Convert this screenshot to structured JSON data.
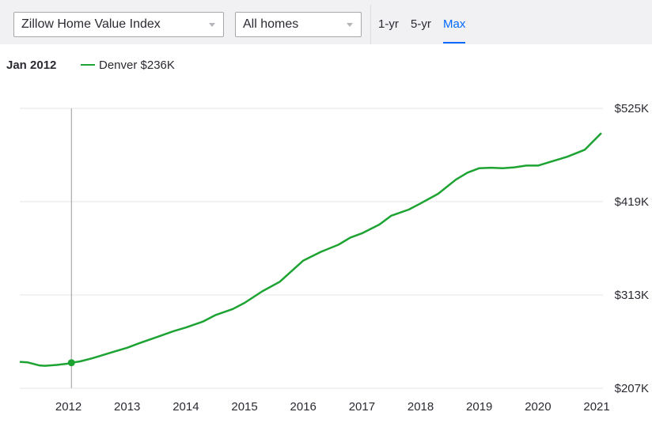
{
  "controls": {
    "metric_select": "Zillow Home Value Index",
    "home_type_select": "All homes",
    "ranges": [
      "1-yr",
      "5-yr",
      "Max"
    ],
    "active_range": "Max"
  },
  "legend": {
    "date": "Jan 2012",
    "series_label": "Denver $236K"
  },
  "colors": {
    "series": "#1da332",
    "accent": "#006aff",
    "gridline": "#e6e6e9",
    "cursor": "#9a9a9f"
  },
  "chart_data": {
    "type": "line",
    "xlabel": "",
    "ylabel": "",
    "xlim": [
      2011.17,
      2021.08
    ],
    "ylim": [
      207000,
      525000
    ],
    "x_ticks": [
      2012,
      2013,
      2014,
      2015,
      2016,
      2017,
      2018,
      2019,
      2020,
      2021
    ],
    "y_ticks": [
      {
        "value": 207000,
        "label": "$207K"
      },
      {
        "value": 313000,
        "label": "$313K"
      },
      {
        "value": 419000,
        "label": "$419K"
      },
      {
        "value": 525000,
        "label": "$525K"
      }
    ],
    "grid": true,
    "hover": {
      "x": 2012.05,
      "y": 236000,
      "label": "Jan 2012"
    },
    "series": [
      {
        "name": "Denver",
        "x": [
          2011.17,
          2011.3,
          2011.5,
          2011.6,
          2011.8,
          2012.0,
          2012.05,
          2012.2,
          2012.4,
          2012.6,
          2012.8,
          2013.0,
          2013.2,
          2013.5,
          2013.8,
          2014.0,
          2014.3,
          2014.5,
          2014.8,
          2015.0,
          2015.3,
          2015.6,
          2015.8,
          2016.0,
          2016.3,
          2016.6,
          2016.8,
          2017.0,
          2017.3,
          2017.5,
          2017.8,
          2018.0,
          2018.3,
          2018.6,
          2018.8,
          2019.0,
          2019.2,
          2019.4,
          2019.6,
          2019.8,
          2020.0,
          2020.2,
          2020.5,
          2020.8,
          2021.08
        ],
        "y": [
          237000,
          236500,
          233000,
          232500,
          233500,
          235000,
          236000,
          237500,
          241000,
          245000,
          249000,
          253000,
          258000,
          265000,
          272000,
          276000,
          283000,
          290000,
          297000,
          304000,
          317000,
          328000,
          340000,
          352000,
          362000,
          370000,
          378000,
          383000,
          393000,
          403000,
          410000,
          417000,
          428000,
          444000,
          452000,
          457000,
          457500,
          457000,
          458000,
          460000,
          460000,
          464000,
          470000,
          478000,
          497000
        ]
      }
    ]
  }
}
